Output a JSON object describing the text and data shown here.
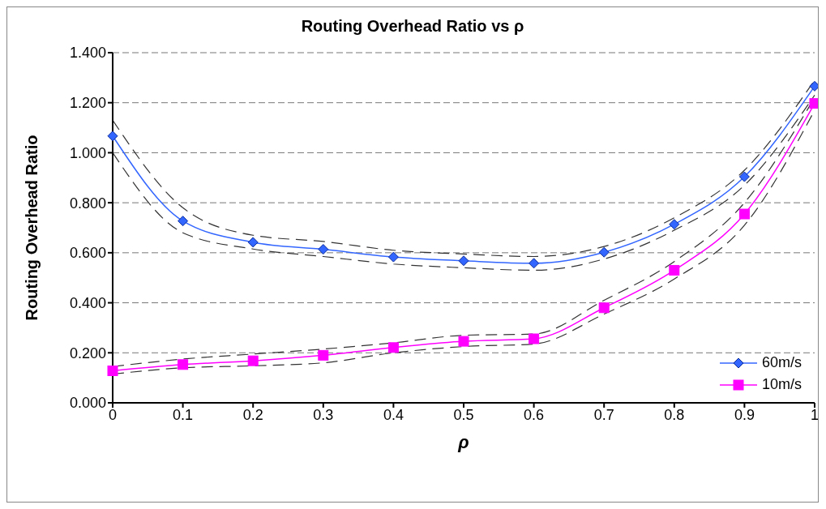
{
  "chart_data": {
    "type": "line",
    "title": "Routing Overhead Ratio vs ρ",
    "xlabel": "ρ",
    "ylabel": "Routing Overhead Ratio",
    "categories": [
      "0",
      "0.1",
      "0.2",
      "0.3",
      "0.4",
      "0.5",
      "0.6",
      "0.7",
      "0.8",
      "0.9",
      "1"
    ],
    "series": [
      {
        "name": "60m/s",
        "color": "#3366ff",
        "marker": "diamond",
        "values": [
          1.067,
          0.727,
          0.642,
          0.614,
          0.583,
          0.568,
          0.558,
          0.602,
          0.714,
          0.904,
          1.266
        ]
      },
      {
        "name": "10m/s",
        "color": "#ff00ff",
        "marker": "square",
        "values": [
          0.128,
          0.153,
          0.168,
          0.19,
          0.221,
          0.246,
          0.256,
          0.38,
          0.53,
          0.755,
          1.197
        ]
      },
      {
        "color": "#333333",
        "marker": "none",
        "line_style": "dashed",
        "values": [
          1.13,
          0.78,
          0.67,
          0.645,
          0.61,
          0.595,
          0.585,
          0.625,
          0.74,
          0.93,
          1.29
        ]
      },
      {
        "color": "#333333",
        "marker": "none",
        "line_style": "dashed",
        "values": [
          1.0,
          0.68,
          0.615,
          0.585,
          0.555,
          0.54,
          0.53,
          0.575,
          0.69,
          0.87,
          1.23
        ]
      },
      {
        "color": "#333333",
        "marker": "none",
        "line_style": "dashed",
        "values": [
          0.145,
          0.175,
          0.195,
          0.215,
          0.24,
          0.27,
          0.275,
          0.41,
          0.565,
          0.8,
          1.22
        ]
      },
      {
        "color": "#333333",
        "marker": "none",
        "line_style": "dashed",
        "values": [
          0.115,
          0.14,
          0.148,
          0.16,
          0.2,
          0.225,
          0.235,
          0.355,
          0.495,
          0.71,
          1.17
        ]
      }
    ],
    "ylim": [
      0,
      1.4
    ],
    "yticks": [
      {
        "value": 0,
        "label": "0.000"
      },
      {
        "value": 0.2,
        "label": "0.200"
      },
      {
        "value": 0.4,
        "label": "0.400"
      },
      {
        "value": 0.6,
        "label": "0.600"
      },
      {
        "value": 0.8,
        "label": "0.800"
      },
      {
        "value": 1,
        "label": "1.000"
      },
      {
        "value": 1.2,
        "label": "1.200"
      },
      {
        "value": 1.4,
        "label": "1.400"
      }
    ],
    "grid": "y",
    "legend": "bottom right",
    "line_style": "solid"
  }
}
